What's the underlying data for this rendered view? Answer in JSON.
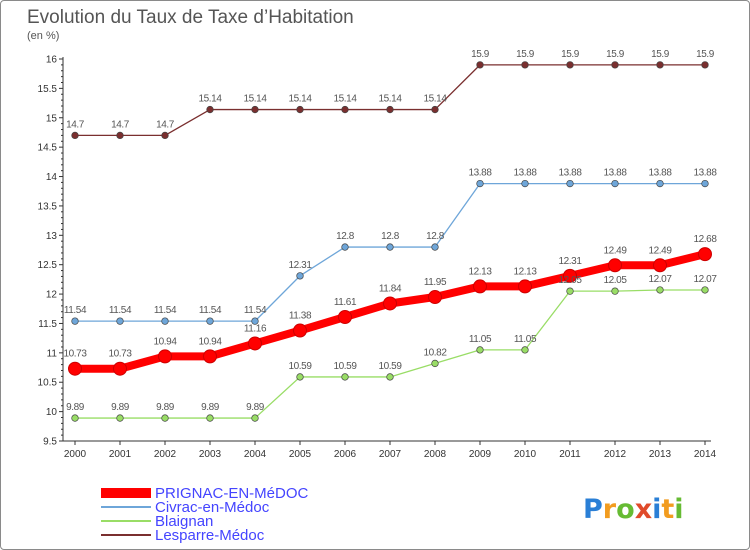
{
  "chart_data": {
    "type": "line",
    "title": "Evolution du Taux de Taxe d’Habitation",
    "subtitle": "(en %)",
    "xlabel": "",
    "ylabel": "",
    "x": [
      "2000",
      "2001",
      "2002",
      "2003",
      "2004",
      "2005",
      "2006",
      "2007",
      "2008",
      "2009",
      "2010",
      "2011",
      "2012",
      "2013",
      "2014"
    ],
    "ylim": [
      9.5,
      16
    ],
    "yticks": [
      "9.5",
      "10",
      "10.5",
      "11",
      "11.5",
      "12",
      "12.5",
      "13",
      "13.5",
      "14",
      "14.5",
      "15",
      "15.5",
      "16"
    ],
    "grid": false,
    "legend_position": "bottom-left",
    "series": [
      {
        "name": "PRIGNAC-EN-MéDOC",
        "color": "#ff0000",
        "labelColor": "#4444ff",
        "labelPos": "above",
        "values": [
          10.73,
          10.73,
          10.94,
          10.94,
          11.16,
          11.38,
          11.61,
          11.84,
          11.95,
          12.13,
          12.13,
          12.31,
          12.49,
          12.49,
          12.68
        ],
        "labels": [
          "10.73",
          "10.73",
          "10.94",
          "10.94",
          "11.16",
          "11.38",
          "11.61",
          "11.84",
          "11.95",
          "12.13",
          "12.13",
          "12.31",
          "12.49",
          "12.49",
          "12.68"
        ]
      },
      {
        "name": "Civrac-en-Médoc",
        "color": "#6ea6d9",
        "labelColor": "#4444ff",
        "labelPos": "above",
        "values": [
          11.54,
          11.54,
          11.54,
          11.54,
          11.54,
          12.31,
          12.8,
          12.8,
          12.8,
          13.88,
          13.88,
          13.88,
          13.88,
          13.88,
          13.88
        ],
        "labels": [
          "11.54",
          "11.54",
          "11.54",
          "11.54",
          "11.54",
          "12.31",
          "12.8",
          "12.8",
          "12.8",
          "13.88",
          "13.88",
          "13.88",
          "13.88",
          "13.88",
          "13.88"
        ]
      },
      {
        "name": "Blaignan",
        "color": "#99dd66",
        "labelColor": "#4444ff",
        "labelPos": "above",
        "values": [
          9.89,
          9.89,
          9.89,
          9.89,
          9.89,
          10.59,
          10.59,
          10.59,
          10.82,
          11.05,
          11.05,
          12.05,
          12.05,
          12.07,
          12.07
        ],
        "labels": [
          "9.89",
          "9.89",
          "9.89",
          "9.89",
          "9.89",
          "10.59",
          "10.59",
          "10.59",
          "10.82",
          "11.05",
          "11.05",
          "12.05",
          "12.05",
          "12.07",
          "12.07"
        ]
      },
      {
        "name": "Lesparre-Médoc",
        "color": "#7a2f2f",
        "labelColor": "#4444ff",
        "labelPos": "above",
        "values": [
          14.7,
          14.7,
          14.7,
          15.14,
          15.14,
          15.14,
          15.14,
          15.14,
          15.14,
          15.9,
          15.9,
          15.9,
          15.9,
          15.9,
          15.9
        ],
        "labels": [
          "14.7",
          "14.7",
          "14.7",
          "15.14",
          "15.14",
          "15.14",
          "15.14",
          "15.14",
          "15.14",
          "15.9",
          "15.9",
          "15.9",
          "15.9",
          "15.9",
          "15.9"
        ]
      }
    ],
    "colors": {
      "axis": "#333333",
      "dlabel": "#555555",
      "legendText": "#4444ff"
    }
  },
  "logo": {
    "letters": [
      "P",
      "r",
      "o",
      "x",
      "i",
      "t",
      "i"
    ],
    "colors": [
      "#2a7fd6",
      "#f29c1f",
      "#66bb33",
      "#e04a2a",
      "#2a7fd6",
      "#f29c1f",
      "#66bb33"
    ]
  }
}
